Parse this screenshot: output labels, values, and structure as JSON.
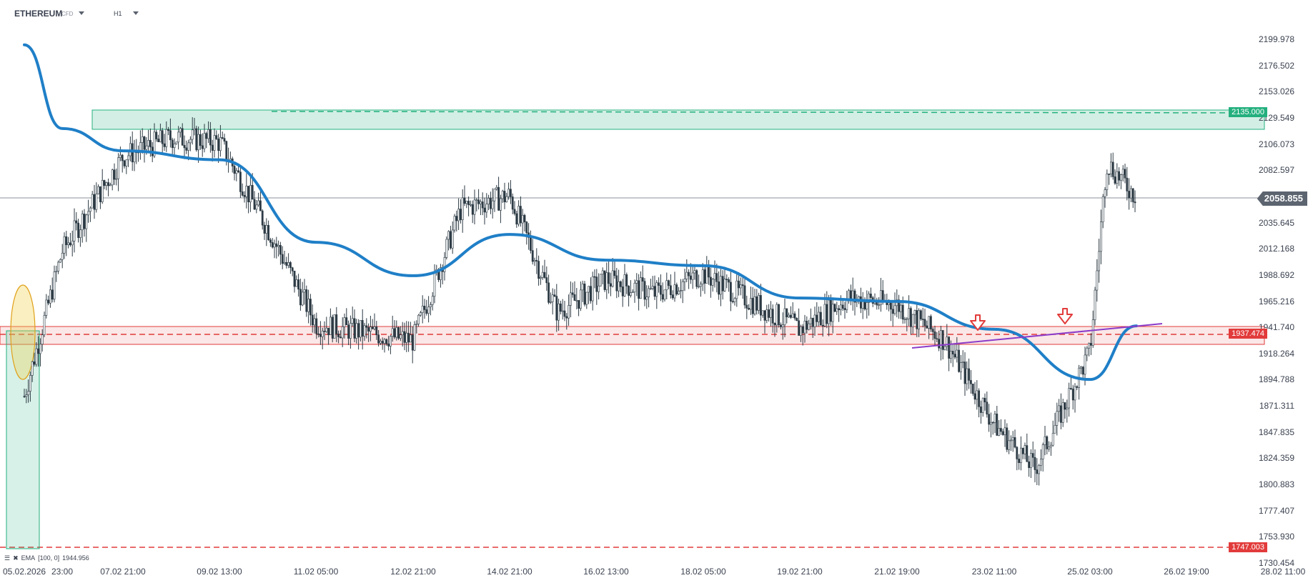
{
  "toolbar": {
    "symbol": "ETHEREUM",
    "symbol_type": "CFD",
    "timeframe": "H1"
  },
  "price_axis": {
    "labels": [
      "2199.978",
      "2176.502",
      "2153.026",
      "2129.549",
      "2106.073",
      "2082.597",
      "2058.855",
      "2035.645",
      "2012.168",
      "1988.692",
      "1965.216",
      "1941.740",
      "1918.264",
      "1894.788",
      "1871.311",
      "1847.835",
      "1824.359",
      "1800.883",
      "1777.407",
      "1753.930",
      "1730.454"
    ]
  },
  "time_axis": {
    "labels": [
      "05.02.2026",
      "23:00",
      "07.02 21:00",
      "09.02 13:00",
      "11.02 05:00",
      "12.02 21:00",
      "14.02 21:00",
      "16.02 13:00",
      "18.02 05:00",
      "19.02 21:00",
      "21.02 19:00",
      "23.02 11:00",
      "25.02 03:00",
      "26.02 19:00",
      "28.02 11:00"
    ]
  },
  "current_price": "2058.855",
  "levels": {
    "resistance_label": "2135.000",
    "support_label": "1937.474",
    "lower_label": "1747.003"
  },
  "indicator": {
    "name": "EMA",
    "params": "[100, 0]",
    "value": "1944.956"
  },
  "colors": {
    "ema": "#1f7fc7",
    "resistance_zone": "#24b07e",
    "support_zone": "#e23b3b",
    "trendline": "#8b3cc9",
    "candle": "#2c3a44",
    "current_line": "#8a9099"
  },
  "chart_data": {
    "type": "candlestick",
    "instrument": "ETHEREUM",
    "timeframe": "H1",
    "ylim": [
      1730.454,
      2199.978
    ],
    "xlabels": [
      "05.02.2026",
      "23:00",
      "07.02 21:00",
      "09.02 13:00",
      "11.02 05:00",
      "12.02 21:00",
      "14.02 21:00",
      "16.02 13:00",
      "18.02 05:00",
      "19.02 21:00",
      "21.02 19:00",
      "23.02 11:00",
      "25.02 03:00",
      "26.02 19:00",
      "28.02 11:00"
    ],
    "approx_close_path": [
      {
        "x": "05.02.2026",
        "y": 1880
      },
      {
        "x": "23:00",
        "y": 2010
      },
      {
        "x": "07.02 21:00",
        "y": 2095
      },
      {
        "x": "08.02",
        "y": 2112
      },
      {
        "x": "09.02 13:00",
        "y": 2108
      },
      {
        "x": "10.02",
        "y": 2030
      },
      {
        "x": "11.02 05:00",
        "y": 1945
      },
      {
        "x": "12.02 21:00",
        "y": 1930
      },
      {
        "x": "13.02",
        "y": 2048
      },
      {
        "x": "14.02 21:00",
        "y": 2060
      },
      {
        "x": "15.02",
        "y": 1955
      },
      {
        "x": "16.02 13:00",
        "y": 1985
      },
      {
        "x": "17.02",
        "y": 1972
      },
      {
        "x": "18.02 05:00",
        "y": 1990
      },
      {
        "x": "19.02 21:00",
        "y": 1940
      },
      {
        "x": "20.02",
        "y": 1968
      },
      {
        "x": "21.02 19:00",
        "y": 1962
      },
      {
        "x": "22.02",
        "y": 1930
      },
      {
        "x": "23.02 11:00",
        "y": 1855
      },
      {
        "x": "24.02",
        "y": 1815
      },
      {
        "x": "25.02 03:00",
        "y": 1920
      },
      {
        "x": "25.02 12:00",
        "y": 2090
      },
      {
        "x": "25.02 21:00",
        "y": 2058.855
      }
    ],
    "ema_100": [
      {
        "x": "05.02.2026",
        "y": 2195
      },
      {
        "x": "23:00",
        "y": 2120
      },
      {
        "x": "07.02 21:00",
        "y": 2100
      },
      {
        "x": "09.02 13:00",
        "y": 2092
      },
      {
        "x": "11.02 05:00",
        "y": 2018
      },
      {
        "x": "12.02 21:00",
        "y": 1988
      },
      {
        "x": "14.02 21:00",
        "y": 2025
      },
      {
        "x": "16.02 13:00",
        "y": 2002
      },
      {
        "x": "18.02 05:00",
        "y": 1997
      },
      {
        "x": "19.02 21:00",
        "y": 1968
      },
      {
        "x": "21.02 19:00",
        "y": 1965
      },
      {
        "x": "23.02 11:00",
        "y": 1940
      },
      {
        "x": "25.02 03:00",
        "y": 1895
      },
      {
        "x": "25.02 21:00",
        "y": 1943
      }
    ],
    "resistance_zone": [
      2120,
      2133
    ],
    "resistance_line": 2135.0,
    "support_zone": [
      1928,
      1943
    ],
    "support_line": 1937.474,
    "lower_line": 1747.003,
    "signals": [
      {
        "type": "sell-arrow",
        "x": "23.02 11:00",
        "y": 1944
      },
      {
        "type": "sell-arrow",
        "x": "24.02 18:00",
        "y": 1946
      }
    ]
  }
}
